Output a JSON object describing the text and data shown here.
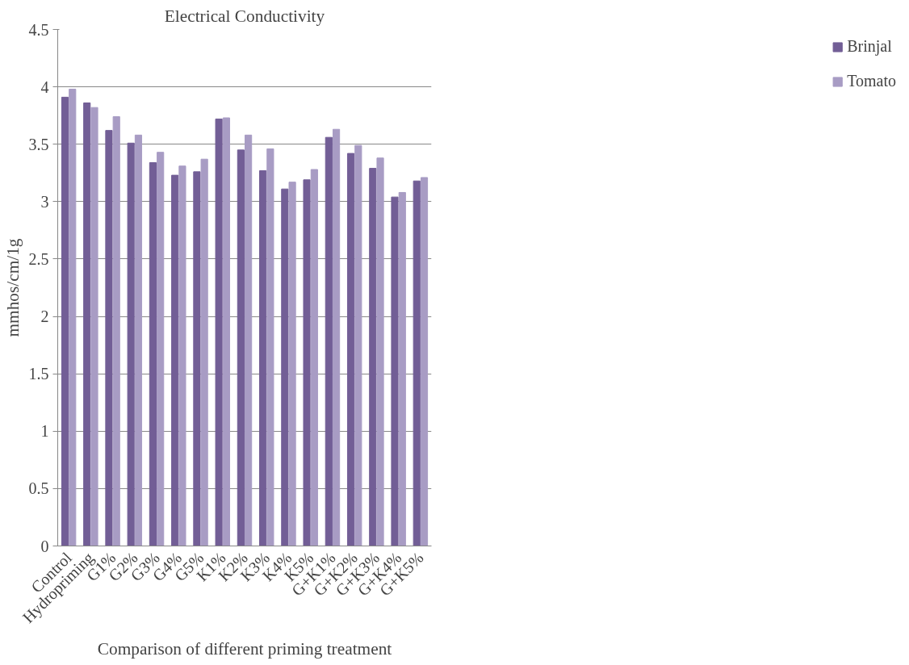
{
  "chart_data": {
    "type": "bar",
    "title": "Electrical Conductivity",
    "xlabel": "Comparison of different priming treatment",
    "ylabel": "mmhos/cm/1g",
    "categories": [
      "Control",
      "Hydropriming",
      "G1%",
      "G2%",
      "G3%",
      "G4%",
      "G5%",
      "K1%",
      "K2%",
      "K3%",
      "K4%",
      "K5%",
      "G+K1%",
      "G+K2%",
      "G+K3%",
      "G+K4%",
      "G+K5%"
    ],
    "series": [
      {
        "name": "Brinjal",
        "color": "#725e96",
        "values": [
          3.91,
          3.86,
          3.62,
          3.51,
          3.34,
          3.23,
          3.26,
          3.72,
          3.45,
          3.27,
          3.11,
          3.19,
          3.56,
          3.42,
          3.29,
          3.04,
          3.18
        ]
      },
      {
        "name": "Tomato",
        "color": "#a89cc4",
        "values": [
          3.98,
          3.82,
          3.74,
          3.58,
          3.43,
          3.31,
          3.37,
          3.73,
          3.58,
          3.46,
          3.17,
          3.28,
          3.63,
          3.49,
          3.38,
          3.08,
          3.21
        ]
      }
    ],
    "ylim": [
      0,
      4.5
    ],
    "yticks": [
      0,
      0.5,
      1,
      1.5,
      2,
      2.5,
      3,
      3.5,
      4,
      4.5
    ],
    "grid": "y",
    "legend": "right"
  }
}
